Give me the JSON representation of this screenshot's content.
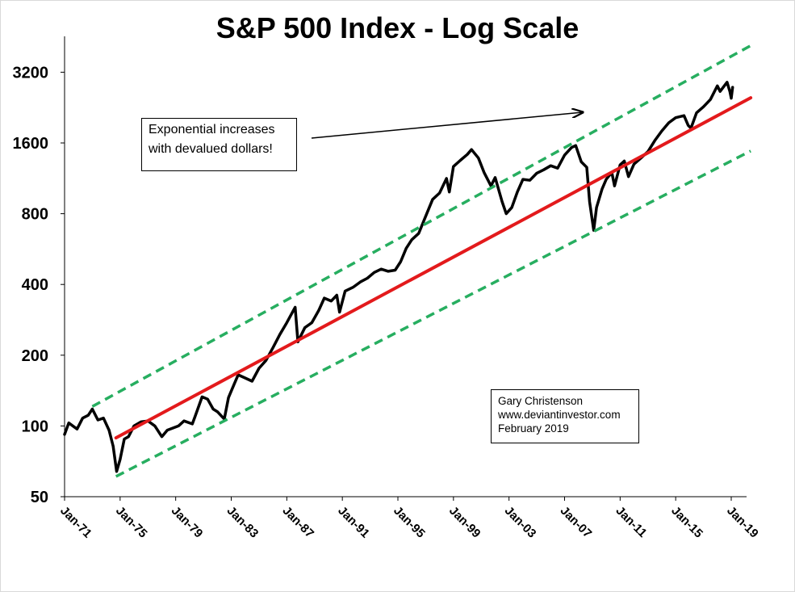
{
  "chart_data": {
    "type": "line",
    "title": "S&P 500 Index - Log Scale",
    "yscale": "log",
    "ylim": [
      50,
      4400
    ],
    "yticks": [
      50,
      100,
      200,
      400,
      800,
      1600,
      3200
    ],
    "ytick_labels": [
      "50",
      "100",
      "200",
      "400",
      "800",
      "1600",
      "3200"
    ],
    "xlim": [
      1971.0,
      2020.0
    ],
    "xticks": [
      1971,
      1975,
      1979,
      1983,
      1987,
      1991,
      1995,
      1999,
      2003,
      2007,
      2011,
      2015,
      2019
    ],
    "xtick_labels": [
      "Jan-71",
      "Jan-75",
      "Jan-79",
      "Jan-83",
      "Jan-87",
      "Jan-91",
      "Jan-95",
      "Jan-99",
      "Jan-03",
      "Jan-07",
      "Jan-11",
      "Jan-15",
      "Jan-19"
    ],
    "series": [
      {
        "name": "S&P 500",
        "color": "#000000",
        "style": "solid",
        "points": [
          [
            1971.0,
            92
          ],
          [
            1971.3,
            103
          ],
          [
            1971.6,
            100
          ],
          [
            1971.9,
            97
          ],
          [
            1972.3,
            108
          ],
          [
            1972.7,
            111
          ],
          [
            1973.0,
            118
          ],
          [
            1973.4,
            106
          ],
          [
            1973.8,
            108
          ],
          [
            1974.2,
            96
          ],
          [
            1974.5,
            82
          ],
          [
            1974.75,
            64
          ],
          [
            1975.0,
            72
          ],
          [
            1975.3,
            88
          ],
          [
            1975.6,
            90
          ],
          [
            1976.0,
            100
          ],
          [
            1976.5,
            104
          ],
          [
            1977.0,
            105
          ],
          [
            1977.5,
            100
          ],
          [
            1978.0,
            90
          ],
          [
            1978.4,
            96
          ],
          [
            1978.8,
            98
          ],
          [
            1979.2,
            100
          ],
          [
            1979.6,
            105
          ],
          [
            1980.2,
            102
          ],
          [
            1980.4,
            110
          ],
          [
            1980.9,
            133
          ],
          [
            1981.3,
            130
          ],
          [
            1981.7,
            118
          ],
          [
            1982.0,
            115
          ],
          [
            1982.5,
            107
          ],
          [
            1982.8,
            132
          ],
          [
            1983.2,
            150
          ],
          [
            1983.5,
            165
          ],
          [
            1984.0,
            160
          ],
          [
            1984.5,
            155
          ],
          [
            1985.0,
            176
          ],
          [
            1985.5,
            190
          ],
          [
            1986.0,
            215
          ],
          [
            1986.5,
            245
          ],
          [
            1987.0,
            275
          ],
          [
            1987.6,
            320
          ],
          [
            1987.8,
            228
          ],
          [
            1988.3,
            262
          ],
          [
            1988.8,
            275
          ],
          [
            1989.3,
            310
          ],
          [
            1989.7,
            350
          ],
          [
            1990.2,
            340
          ],
          [
            1990.6,
            360
          ],
          [
            1990.8,
            305
          ],
          [
            1991.2,
            375
          ],
          [
            1991.8,
            390
          ],
          [
            1992.3,
            410
          ],
          [
            1992.8,
            425
          ],
          [
            1993.3,
            450
          ],
          [
            1993.8,
            465
          ],
          [
            1994.3,
            455
          ],
          [
            1994.8,
            460
          ],
          [
            1995.2,
            500
          ],
          [
            1995.6,
            570
          ],
          [
            1996.0,
            620
          ],
          [
            1996.5,
            660
          ],
          [
            1997.0,
            780
          ],
          [
            1997.5,
            920
          ],
          [
            1998.0,
            980
          ],
          [
            1998.5,
            1130
          ],
          [
            1998.7,
            990
          ],
          [
            1999.0,
            1270
          ],
          [
            1999.5,
            1350
          ],
          [
            2000.0,
            1430
          ],
          [
            2000.3,
            1500
          ],
          [
            2000.8,
            1380
          ],
          [
            2001.2,
            1200
          ],
          [
            2001.7,
            1050
          ],
          [
            2002.0,
            1140
          ],
          [
            2002.5,
            900
          ],
          [
            2002.8,
            800
          ],
          [
            2003.2,
            850
          ],
          [
            2003.6,
            990
          ],
          [
            2004.0,
            1120
          ],
          [
            2004.5,
            1110
          ],
          [
            2005.0,
            1190
          ],
          [
            2005.5,
            1230
          ],
          [
            2006.0,
            1280
          ],
          [
            2006.5,
            1250
          ],
          [
            2007.0,
            1420
          ],
          [
            2007.5,
            1530
          ],
          [
            2007.8,
            1560
          ],
          [
            2008.2,
            1330
          ],
          [
            2008.6,
            1260
          ],
          [
            2008.8,
            900
          ],
          [
            2009.1,
            680
          ],
          [
            2009.3,
            850
          ],
          [
            2009.7,
            1020
          ],
          [
            2010.0,
            1120
          ],
          [
            2010.4,
            1200
          ],
          [
            2010.6,
            1050
          ],
          [
            2011.0,
            1290
          ],
          [
            2011.3,
            1340
          ],
          [
            2011.6,
            1150
          ],
          [
            2012.0,
            1300
          ],
          [
            2012.5,
            1380
          ],
          [
            2013.0,
            1470
          ],
          [
            2013.5,
            1640
          ],
          [
            2014.0,
            1800
          ],
          [
            2014.5,
            1950
          ],
          [
            2015.0,
            2050
          ],
          [
            2015.6,
            2090
          ],
          [
            2015.9,
            1900
          ],
          [
            2016.1,
            1850
          ],
          [
            2016.5,
            2150
          ],
          [
            2017.0,
            2280
          ],
          [
            2017.5,
            2450
          ],
          [
            2018.0,
            2800
          ],
          [
            2018.2,
            2650
          ],
          [
            2018.7,
            2900
          ],
          [
            2018.9,
            2650
          ],
          [
            2019.0,
            2480
          ],
          [
            2019.1,
            2760
          ]
        ]
      },
      {
        "name": "Trend",
        "color": "#e31a1c",
        "style": "solid",
        "points": [
          [
            1974.7,
            89
          ],
          [
            2020.4,
            2490
          ]
        ]
      },
      {
        "name": "Upper channel",
        "color": "#27ae60",
        "style": "dashed",
        "points": [
          [
            1973.0,
            121
          ],
          [
            2020.4,
            4150
          ]
        ]
      },
      {
        "name": "Lower channel",
        "color": "#27ae60",
        "style": "dashed",
        "points": [
          [
            1974.7,
            61
          ],
          [
            2020.4,
            1480
          ]
        ]
      }
    ],
    "annotations": [
      {
        "name": "exponential",
        "lines": [
          "Exponential increases",
          "with devalued dollars!"
        ]
      },
      {
        "name": "credit",
        "lines": [
          "Gary Christenson",
          "www.deviantinvestor.com",
          "February 2019"
        ]
      }
    ]
  }
}
